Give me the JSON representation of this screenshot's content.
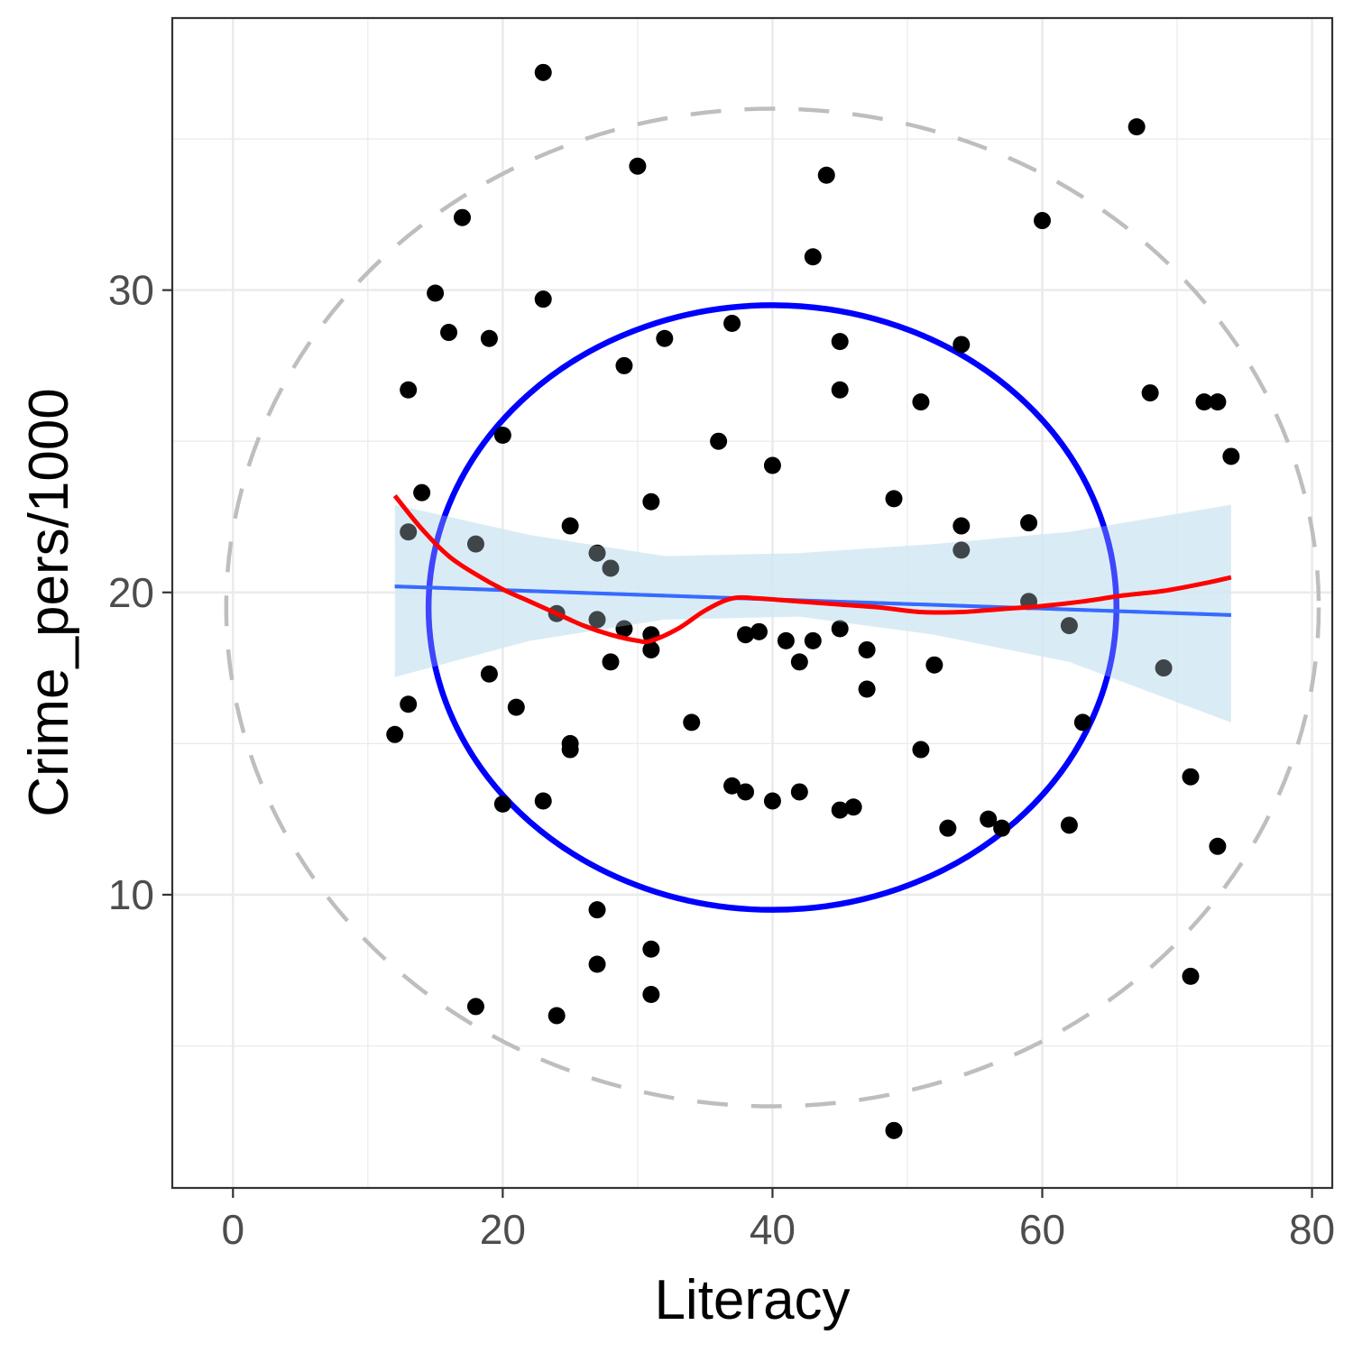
{
  "chart_data": {
    "type": "scatter",
    "title": "",
    "xlabel": "Literacy",
    "ylabel": "Crime_pers/1000",
    "xlim": [
      -4.5,
      81.5
    ],
    "ylim": [
      0.3,
      39.0
    ],
    "x_ticks": [
      0,
      20,
      40,
      60,
      80
    ],
    "y_ticks": [
      10,
      20,
      30
    ],
    "grid": true,
    "legend": "none",
    "colors": {
      "points": "#000000",
      "linear_fit": "#3366ff",
      "confidence_band": "#d2e8f3",
      "loess_fit": "#ff0000",
      "inner_circle": "#0000ff",
      "outer_circle": "#bebebe",
      "grid": "#ebebeb",
      "panel_border": "#333333"
    },
    "points": [
      {
        "x": 12,
        "y": 15.3
      },
      {
        "x": 13,
        "y": 26.7
      },
      {
        "x": 13,
        "y": 22.0
      },
      {
        "x": 13,
        "y": 16.3
      },
      {
        "x": 14,
        "y": 23.3
      },
      {
        "x": 15,
        "y": 29.9
      },
      {
        "x": 16,
        "y": 28.6
      },
      {
        "x": 17,
        "y": 32.4
      },
      {
        "x": 18,
        "y": 21.6
      },
      {
        "x": 18,
        "y": 6.3
      },
      {
        "x": 19,
        "y": 28.4
      },
      {
        "x": 19,
        "y": 17.3
      },
      {
        "x": 20,
        "y": 25.2
      },
      {
        "x": 20,
        "y": 13.0
      },
      {
        "x": 21,
        "y": 16.2
      },
      {
        "x": 23,
        "y": 37.2
      },
      {
        "x": 23,
        "y": 29.7
      },
      {
        "x": 23,
        "y": 13.1
      },
      {
        "x": 24,
        "y": 19.3
      },
      {
        "x": 24,
        "y": 6.0
      },
      {
        "x": 25,
        "y": 22.2
      },
      {
        "x": 25,
        "y": 15.0
      },
      {
        "x": 25,
        "y": 14.8
      },
      {
        "x": 27,
        "y": 21.3
      },
      {
        "x": 27,
        "y": 19.1
      },
      {
        "x": 27,
        "y": 9.5
      },
      {
        "x": 27,
        "y": 7.7
      },
      {
        "x": 28,
        "y": 20.8
      },
      {
        "x": 28,
        "y": 17.7
      },
      {
        "x": 29,
        "y": 27.5
      },
      {
        "x": 29,
        "y": 18.8
      },
      {
        "x": 30,
        "y": 34.1
      },
      {
        "x": 31,
        "y": 23.0
      },
      {
        "x": 31,
        "y": 18.6
      },
      {
        "x": 31,
        "y": 18.1
      },
      {
        "x": 31,
        "y": 8.2
      },
      {
        "x": 31,
        "y": 6.7
      },
      {
        "x": 32,
        "y": 28.4
      },
      {
        "x": 34,
        "y": 15.7
      },
      {
        "x": 36,
        "y": 25.0
      },
      {
        "x": 37,
        "y": 28.9
      },
      {
        "x": 37,
        "y": 13.6
      },
      {
        "x": 38,
        "y": 18.6
      },
      {
        "x": 38,
        "y": 13.4
      },
      {
        "x": 39,
        "y": 18.7
      },
      {
        "x": 40,
        "y": 24.2
      },
      {
        "x": 40,
        "y": 13.1
      },
      {
        "x": 41,
        "y": 18.4
      },
      {
        "x": 42,
        "y": 17.7
      },
      {
        "x": 42,
        "y": 13.4
      },
      {
        "x": 43,
        "y": 31.1
      },
      {
        "x": 43,
        "y": 18.4
      },
      {
        "x": 44,
        "y": 33.8
      },
      {
        "x": 45,
        "y": 28.3
      },
      {
        "x": 45,
        "y": 26.7
      },
      {
        "x": 45,
        "y": 18.8
      },
      {
        "x": 45,
        "y": 12.8
      },
      {
        "x": 46,
        "y": 12.9
      },
      {
        "x": 47,
        "y": 18.1
      },
      {
        "x": 47,
        "y": 16.8
      },
      {
        "x": 49,
        "y": 23.1
      },
      {
        "x": 49,
        "y": 2.2
      },
      {
        "x": 51,
        "y": 26.3
      },
      {
        "x": 51,
        "y": 14.8
      },
      {
        "x": 52,
        "y": 17.6
      },
      {
        "x": 53,
        "y": 12.2
      },
      {
        "x": 54,
        "y": 28.2
      },
      {
        "x": 54,
        "y": 22.2
      },
      {
        "x": 54,
        "y": 21.4
      },
      {
        "x": 56,
        "y": 12.5
      },
      {
        "x": 57,
        "y": 12.2
      },
      {
        "x": 59,
        "y": 22.3
      },
      {
        "x": 59,
        "y": 19.7
      },
      {
        "x": 60,
        "y": 32.3
      },
      {
        "x": 62,
        "y": 18.9
      },
      {
        "x": 62,
        "y": 12.3
      },
      {
        "x": 63,
        "y": 15.7
      },
      {
        "x": 67,
        "y": 35.4
      },
      {
        "x": 68,
        "y": 26.6
      },
      {
        "x": 69,
        "y": 17.5
      },
      {
        "x": 71,
        "y": 13.9
      },
      {
        "x": 71,
        "y": 7.3
      },
      {
        "x": 72,
        "y": 26.3
      },
      {
        "x": 73,
        "y": 26.3
      },
      {
        "x": 73,
        "y": 11.6
      },
      {
        "x": 74,
        "y": 24.5
      }
    ],
    "linear_fit": {
      "x": [
        12,
        74
      ],
      "y": [
        20.2,
        19.25
      ]
    },
    "confidence_band": {
      "x": [
        12,
        22,
        32,
        42,
        52,
        62,
        74
      ],
      "lower": [
        17.2,
        18.4,
        19.1,
        19.2,
        18.6,
        17.7,
        15.7
      ],
      "upper": [
        22.9,
        21.9,
        21.2,
        21.3,
        21.6,
        22.0,
        22.9
      ]
    },
    "loess_fit": {
      "x": [
        12,
        14,
        16,
        18,
        20,
        22,
        24,
        26,
        28,
        30,
        31,
        33,
        35,
        37,
        39,
        42,
        45,
        48,
        51,
        54,
        57,
        60,
        63,
        66,
        69,
        72,
        74
      ],
      "y": [
        23.2,
        22.1,
        21.2,
        20.6,
        20.1,
        19.7,
        19.3,
        18.9,
        18.6,
        18.4,
        18.4,
        18.8,
        19.4,
        19.8,
        19.8,
        19.7,
        19.6,
        19.5,
        19.35,
        19.35,
        19.45,
        19.55,
        19.7,
        19.9,
        20.05,
        20.3,
        20.5
      ]
    },
    "inner_circle": {
      "cx": 40,
      "cy": 19.5,
      "rx": 25.5,
      "ry": 10.0
    },
    "outer_circle": {
      "cx": 40,
      "cy": 19.5,
      "rx": 40.5,
      "ry": 16.5
    }
  }
}
